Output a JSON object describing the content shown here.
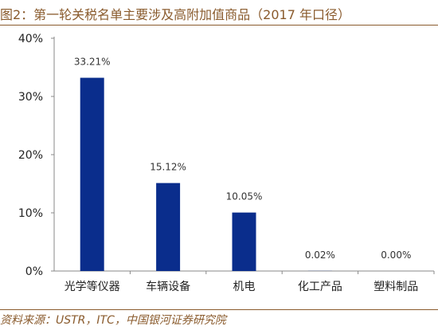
{
  "title": "图2：第一轮关税名单主要涉及高附加值商品（2017 年口径）",
  "source": "资料来源：USTR，ITC，中国银河证券研究院",
  "colors": {
    "bar": "#0a2d8c",
    "accent": "#8a5b2d",
    "axis": "#888888"
  },
  "chart_data": {
    "type": "bar",
    "title": "",
    "xlabel": "",
    "ylabel": "",
    "categories": [
      "光学等仪器",
      "车辆设备",
      "机电",
      "化工产品",
      "塑料制品"
    ],
    "values": [
      33.21,
      15.12,
      10.05,
      0.02,
      0.0
    ],
    "data_labels": [
      "33.21%",
      "15.12%",
      "10.05%",
      "0.02%",
      "0.00%"
    ],
    "ylim": [
      0,
      40
    ],
    "yticks": [
      0,
      10,
      20,
      30,
      40
    ],
    "ytick_labels": [
      "0%",
      "10%",
      "20%",
      "30%",
      "40%"
    ],
    "grid": false,
    "legend": "none"
  }
}
